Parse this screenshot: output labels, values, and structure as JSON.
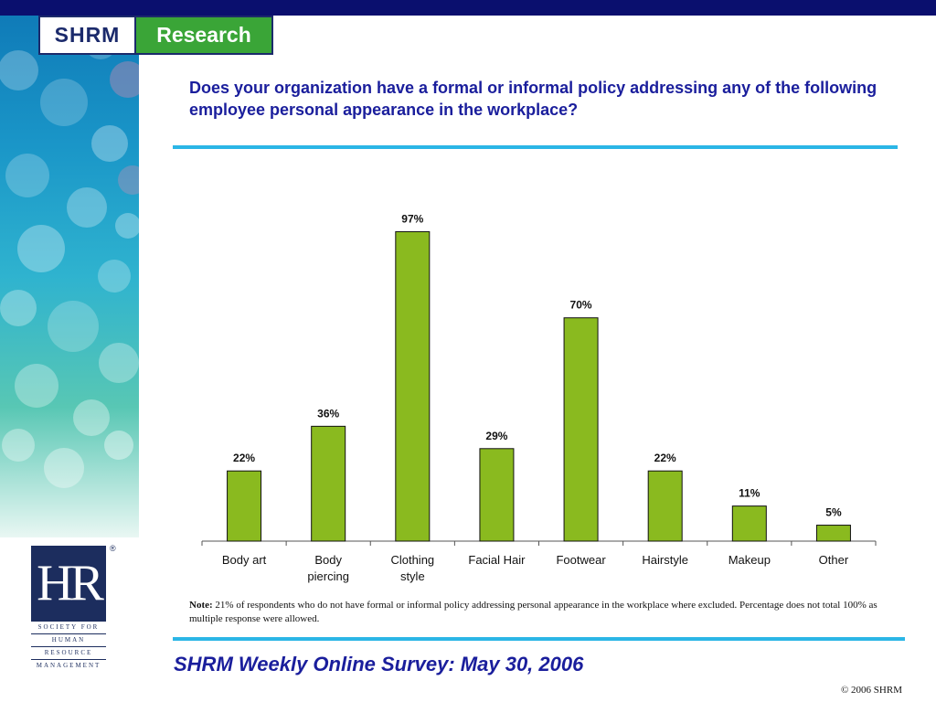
{
  "header": {
    "logo_shrm": "SHRM",
    "logo_research": "Research"
  },
  "slide": {
    "title": "Does your organization have a formal or informal policy addressing any of the following employee personal appearance in the workplace?",
    "note_label": "Note:",
    "note_text": " 21% of respondents who do not have formal or informal policy addressing personal appearance in the workplace where excluded. Percentage does not total 100% as multiple response were allowed.",
    "survey_footer": "SHRM Weekly Online Survey: May 30, 2006",
    "copyright": "© 2006 SHRM"
  },
  "hr_logo": {
    "mark": "HR",
    "registered": "®",
    "line1": "SOCIETY FOR",
    "line2": "HUMAN",
    "line3": "RESOURCE",
    "line4": "MANAGEMENT"
  },
  "colors": {
    "bar": "#8aba1f",
    "bar_stroke": "#111111",
    "title": "#1a1e9c",
    "rule": "#2bb6e6"
  },
  "chart_data": {
    "type": "bar",
    "categories": [
      [
        "Body art"
      ],
      [
        "Body",
        "piercing"
      ],
      [
        "Clothing",
        "style"
      ],
      [
        "Facial Hair"
      ],
      [
        "Footwear"
      ],
      [
        "Hairstyle"
      ],
      [
        "Makeup"
      ],
      [
        "Other"
      ]
    ],
    "values": [
      22,
      36,
      97,
      29,
      70,
      22,
      11,
      5
    ],
    "value_labels": [
      "22%",
      "36%",
      "97%",
      "29%",
      "70%",
      "22%",
      "11%",
      "5%"
    ],
    "ylim": [
      0,
      100
    ],
    "grid": false,
    "legend": "none"
  }
}
